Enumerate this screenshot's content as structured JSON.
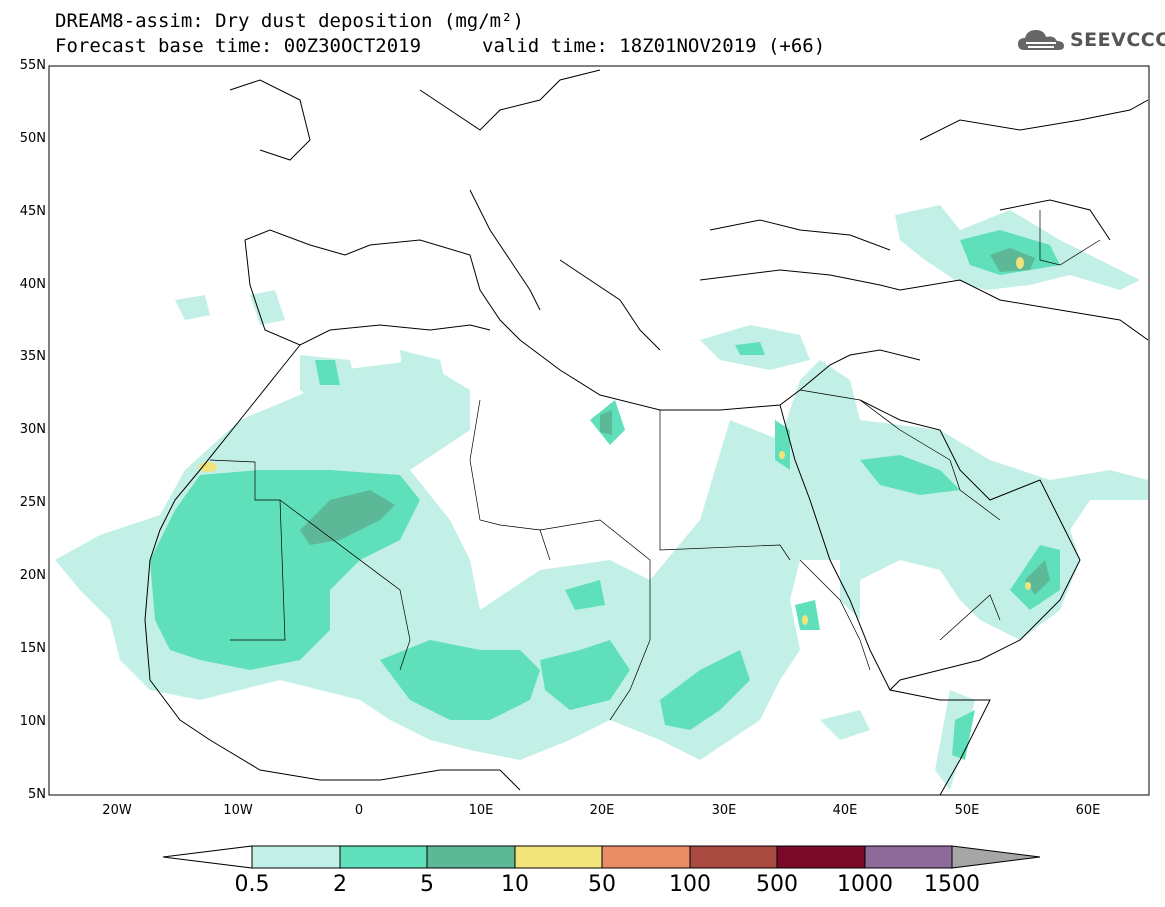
{
  "title": {
    "line1": "DREAM8-assim: Dry dust deposition (mg/m²)",
    "line2": "Forecast base time: 00Z30OCT2019",
    "line3": "valid time: 18Z01NOV2019 (+66)"
  },
  "logo": {
    "text": "SEEVCCC",
    "icon": "cloud-logo-icon"
  },
  "map": {
    "lat_labels": [
      "55N",
      "50N",
      "45N",
      "40N",
      "35N",
      "30N",
      "25N",
      "20N",
      "15N",
      "10N",
      "5N"
    ],
    "lon_labels": [
      "20W",
      "10W",
      "0",
      "10E",
      "20E",
      "30E",
      "40E",
      "50E",
      "60E"
    ]
  },
  "colorbar": {
    "labels": [
      "0.5",
      "2",
      "5",
      "10",
      "50",
      "100",
      "500",
      "1000",
      "1500"
    ],
    "colors": [
      "#ffffff",
      "#c2f0e6",
      "#5fe0bb",
      "#5cb896",
      "#f2e47a",
      "#e98c66",
      "#a94a40",
      "#7a0a2a",
      "#8d6a9a",
      "#a6a6a6"
    ]
  }
}
